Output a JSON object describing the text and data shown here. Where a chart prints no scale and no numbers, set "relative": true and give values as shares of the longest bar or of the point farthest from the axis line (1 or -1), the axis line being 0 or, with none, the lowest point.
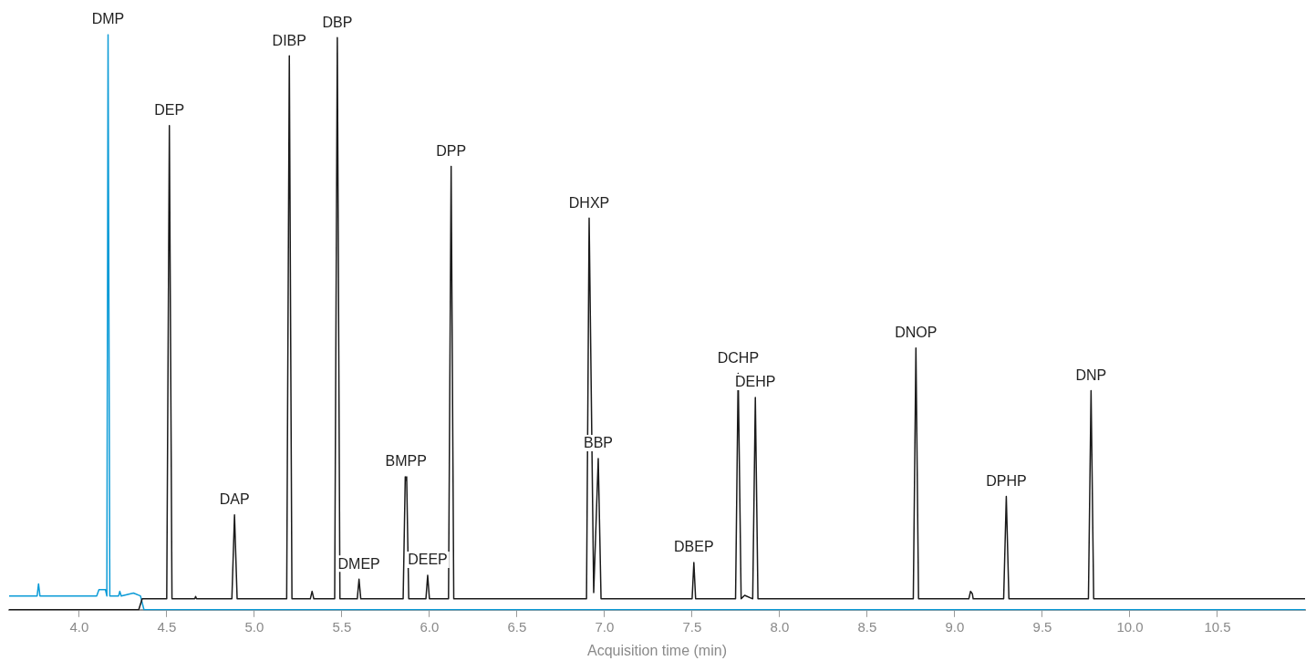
{
  "chart_data": {
    "type": "line",
    "relative": true,
    "xlabel": "Acquisition time (min)",
    "xlim": [
      3.6,
      11.0
    ],
    "xticks": [
      {
        "value": 4,
        "label": "4.0"
      },
      {
        "value": 4.5,
        "label": "4.5"
      },
      {
        "value": 5,
        "label": "5.0"
      },
      {
        "value": 5.5,
        "label": "5.5"
      },
      {
        "value": 6,
        "label": "6.0"
      },
      {
        "value": 6.5,
        "label": "6.5"
      },
      {
        "value": 7,
        "label": "7.0"
      },
      {
        "value": 7.5,
        "label": "7.5"
      },
      {
        "value": 8,
        "label": "8.0"
      },
      {
        "value": 8.5,
        "label": "8.5"
      },
      {
        "value": 9,
        "label": "9.0"
      },
      {
        "value": 9.5,
        "label": "9.5"
      },
      {
        "value": 10,
        "label": "10.0"
      },
      {
        "value": 10.5,
        "label": "10.5"
      }
    ],
    "grid": false,
    "legend": false,
    "marker": "none",
    "line_style": "solid",
    "series": [
      {
        "color": "#1a1a1a",
        "x": [
          3.6,
          4.34,
          4.36,
          4.5,
          4.515,
          4.53,
          4.66,
          4.665,
          4.67,
          4.872,
          4.887,
          4.902,
          5.185,
          5.2,
          5.215,
          5.32,
          5.33,
          5.34,
          5.459,
          5.474,
          5.489,
          5.588,
          5.598,
          5.608,
          5.85,
          5.862,
          5.866,
          5.87,
          5.882,
          5.98,
          5.99,
          6.0,
          6.109,
          6.124,
          6.139,
          6.897,
          6.912,
          6.938,
          6.964,
          6.98,
          7.5,
          7.51,
          7.52,
          7.748,
          7.763,
          7.78,
          7.8,
          7.846,
          7.861,
          7.876,
          8.763,
          8.778,
          8.793,
          9.08,
          9.09,
          9.1,
          9.105,
          9.279,
          9.294,
          9.309,
          9.763,
          9.778,
          9.793,
          11.0
        ],
        "values": [
          0,
          0,
          0.019,
          0.019,
          0.842,
          0.019,
          0.019,
          0.023,
          0.019,
          0.019,
          0.165,
          0.019,
          0.019,
          0.963,
          0.019,
          0.019,
          0.032,
          0.019,
          0.019,
          0.995,
          0.019,
          0.019,
          0.053,
          0.019,
          0.019,
          0.231,
          0.225,
          0.231,
          0.019,
          0.019,
          0.06,
          0.019,
          0.019,
          0.771,
          0.019,
          0.019,
          0.681,
          0.03,
          0.263,
          0.019,
          0.019,
          0.082,
          0.019,
          0.019,
          0.411,
          0.019,
          0.025,
          0.019,
          0.369,
          0.019,
          0.019,
          0.455,
          0.019,
          0.019,
          0.032,
          0.028,
          0.019,
          0.019,
          0.197,
          0.019,
          0.019,
          0.381,
          0.019,
          0.019
        ]
      },
      {
        "color": "#0b9bd7",
        "x": [
          3.6,
          3.76,
          3.768,
          3.776,
          4.1,
          4.113,
          4.15,
          4.158,
          4.165,
          4.175,
          4.225,
          4.232,
          4.24,
          4.31,
          4.35,
          4.37,
          11.0
        ],
        "values": [
          0.024,
          0.024,
          0.045,
          0.024,
          0.024,
          0.035,
          0.035,
          0.024,
          1.0,
          0.024,
          0.024,
          0.032,
          0.024,
          0.029,
          0.024,
          0,
          0
        ]
      }
    ],
    "annotations": [
      {
        "text": "DMP",
        "x": 4.165,
        "y": 1.0
      },
      {
        "text": "DEP",
        "x": 4.515,
        "y": 0.842
      },
      {
        "text": "DAP",
        "x": 4.887,
        "y": 0.165
      },
      {
        "text": "DIBP",
        "x": 5.2,
        "y": 0.963
      },
      {
        "text": "DBP",
        "x": 5.474,
        "y": 0.995
      },
      {
        "text": "DMEP",
        "x": 5.598,
        "y": 0.053
      },
      {
        "text": "BMPP",
        "x": 5.866,
        "y": 0.231
      },
      {
        "text": "DEEP",
        "x": 5.99,
        "y": 0.06
      },
      {
        "text": "DPP",
        "x": 6.124,
        "y": 0.771
      },
      {
        "text": "DHXP",
        "x": 6.912,
        "y": 0.681
      },
      {
        "text": "BBP",
        "x": 6.964,
        "y": 0.263
      },
      {
        "text": "DBEP",
        "x": 7.51,
        "y": 0.082
      },
      {
        "text": "DCHP",
        "x": 7.763,
        "y": 0.411
      },
      {
        "text": "DEHP",
        "x": 7.861,
        "y": 0.369
      },
      {
        "text": "DNOP",
        "x": 8.778,
        "y": 0.455
      },
      {
        "text": "DPHP",
        "x": 9.294,
        "y": 0.197
      },
      {
        "text": "DNP",
        "x": 9.778,
        "y": 0.381
      }
    ]
  }
}
